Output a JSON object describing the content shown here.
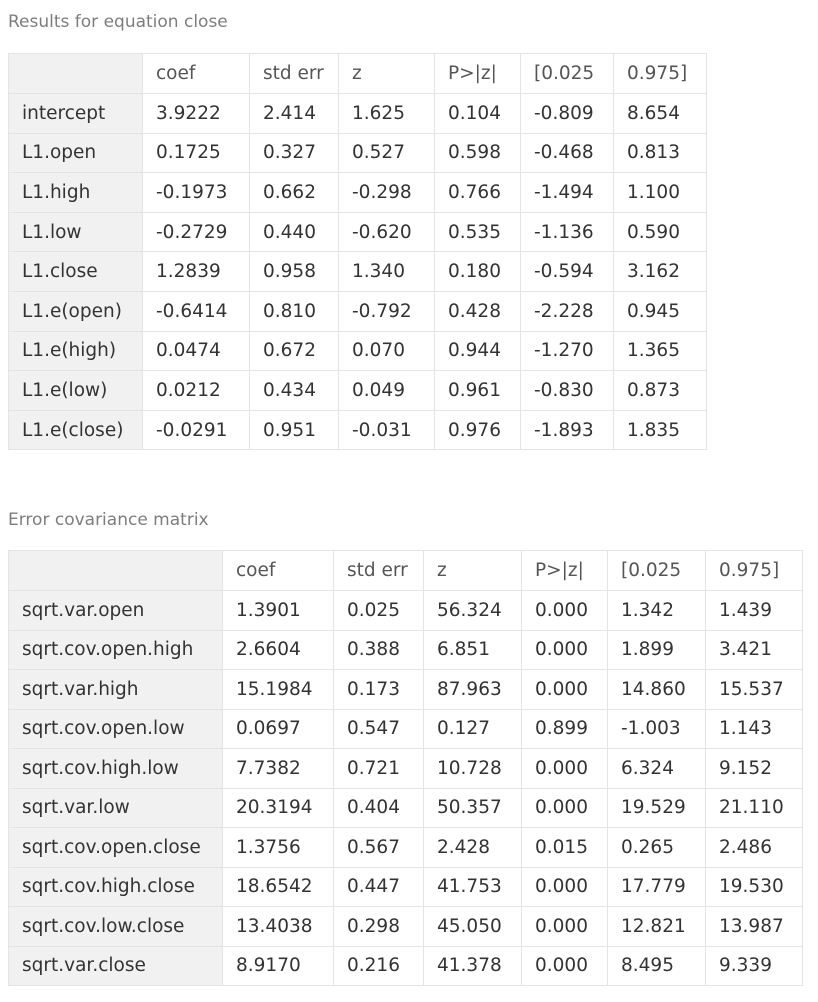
{
  "equation_results": {
    "caption": "Results for equation close",
    "columns": [
      "coef",
      "std err",
      "z",
      "P>|z|",
      "[0.025",
      "0.975]"
    ],
    "rows": [
      {
        "label": "intercept",
        "values": [
          "3.9222",
          "2.414",
          "1.625",
          "0.104",
          "-0.809",
          "8.654"
        ]
      },
      {
        "label": "L1.open",
        "values": [
          "0.1725",
          "0.327",
          "0.527",
          "0.598",
          "-0.468",
          "0.813"
        ]
      },
      {
        "label": "L1.high",
        "values": [
          "-0.1973",
          "0.662",
          "-0.298",
          "0.766",
          "-1.494",
          "1.100"
        ]
      },
      {
        "label": "L1.low",
        "values": [
          "-0.2729",
          "0.440",
          "-0.620",
          "0.535",
          "-1.136",
          "0.590"
        ]
      },
      {
        "label": "L1.close",
        "values": [
          "1.2839",
          "0.958",
          "1.340",
          "0.180",
          "-0.594",
          "3.162"
        ]
      },
      {
        "label": "L1.e(open)",
        "values": [
          "-0.6414",
          "0.810",
          "-0.792",
          "0.428",
          "-2.228",
          "0.945"
        ]
      },
      {
        "label": "L1.e(high)",
        "values": [
          "0.0474",
          "0.672",
          "0.070",
          "0.944",
          "-1.270",
          "1.365"
        ]
      },
      {
        "label": "L1.e(low)",
        "values": [
          "0.0212",
          "0.434",
          "0.049",
          "0.961",
          "-0.830",
          "0.873"
        ]
      },
      {
        "label": "L1.e(close)",
        "values": [
          "-0.0291",
          "0.951",
          "-0.031",
          "0.976",
          "-1.893",
          "1.835"
        ]
      }
    ]
  },
  "error_covariance": {
    "caption": "Error covariance matrix",
    "columns": [
      "coef",
      "std err",
      "z",
      "P>|z|",
      "[0.025",
      "0.975]"
    ],
    "rows": [
      {
        "label": "sqrt.var.open",
        "values": [
          "1.3901",
          "0.025",
          "56.324",
          "0.000",
          "1.342",
          "1.439"
        ]
      },
      {
        "label": "sqrt.cov.open.high",
        "values": [
          "2.6604",
          "0.388",
          "6.851",
          "0.000",
          "1.899",
          "3.421"
        ]
      },
      {
        "label": "sqrt.var.high",
        "values": [
          "15.1984",
          "0.173",
          "87.963",
          "0.000",
          "14.860",
          "15.537"
        ]
      },
      {
        "label": "sqrt.cov.open.low",
        "values": [
          "0.0697",
          "0.547",
          "0.127",
          "0.899",
          "-1.003",
          "1.143"
        ]
      },
      {
        "label": "sqrt.cov.high.low",
        "values": [
          "7.7382",
          "0.721",
          "10.728",
          "0.000",
          "6.324",
          "9.152"
        ]
      },
      {
        "label": "sqrt.var.low",
        "values": [
          "20.3194",
          "0.404",
          "50.357",
          "0.000",
          "19.529",
          "21.110"
        ]
      },
      {
        "label": "sqrt.cov.open.close",
        "values": [
          "1.3756",
          "0.567",
          "2.428",
          "0.015",
          "0.265",
          "2.486"
        ]
      },
      {
        "label": "sqrt.cov.high.close",
        "values": [
          "18.6542",
          "0.447",
          "41.753",
          "0.000",
          "17.779",
          "19.530"
        ]
      },
      {
        "label": "sqrt.cov.low.close",
        "values": [
          "13.4038",
          "0.298",
          "45.050",
          "0.000",
          "12.821",
          "13.987"
        ]
      },
      {
        "label": "sqrt.var.close",
        "values": [
          "8.9170",
          "0.216",
          "41.378",
          "0.000",
          "8.495",
          "9.339"
        ]
      }
    ]
  }
}
